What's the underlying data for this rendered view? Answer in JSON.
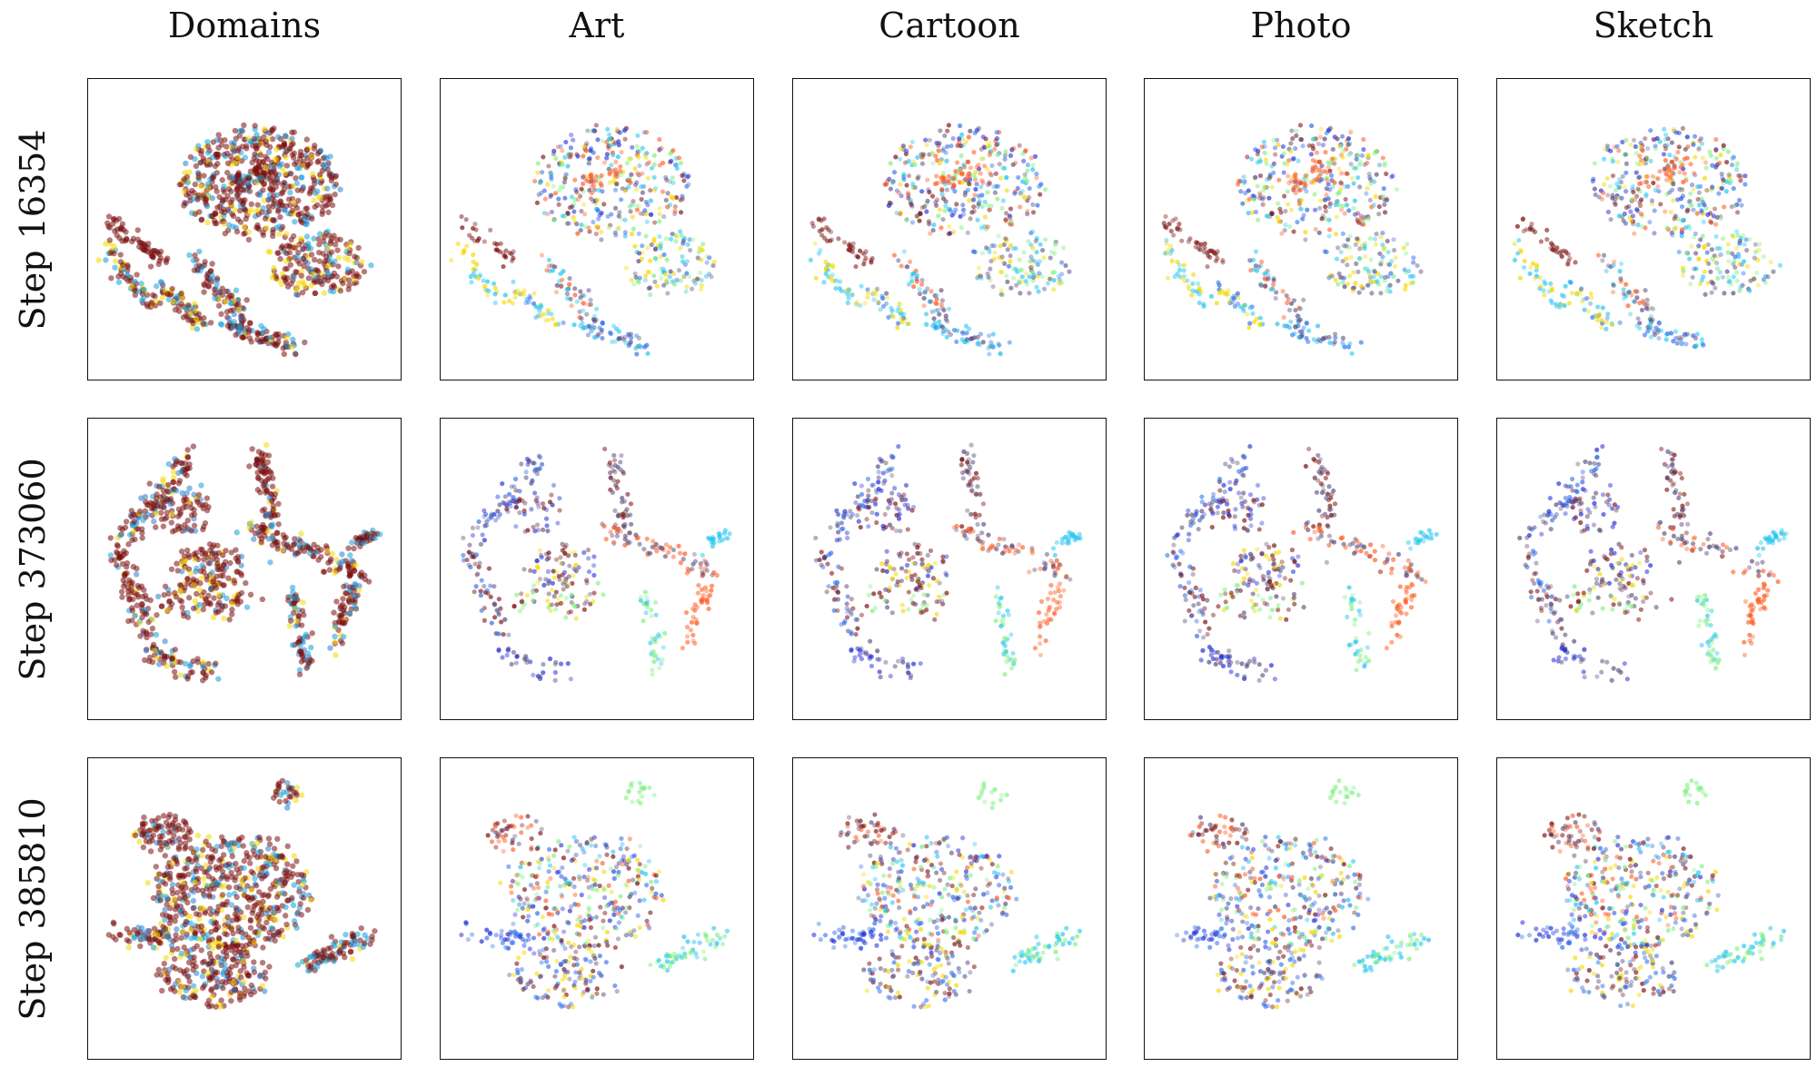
{
  "chart_data": {
    "type": "scatter",
    "columns": [
      "Domains",
      "Art",
      "Cartoon",
      "Photo",
      "Sketch"
    ],
    "rows": [
      "Step 16354",
      "Step 373060",
      "Step 385810"
    ],
    "grid": false,
    "axes_ticks": false,
    "domain_colors": {
      "Art": "#14a0d8",
      "Cartoon": "#f5d800",
      "Photo": "#7a0f0f",
      "Sketch": "#2a7fd0"
    },
    "class_palette": [
      "#1f2bd6",
      "#2f6ee8",
      "#22c4f0",
      "#80f080",
      "#f5d800",
      "#ff5a1e",
      "#7a0f0f",
      "#5a4c7c"
    ],
    "panels": [
      {
        "row": "Step 16354",
        "layout": "early-continent",
        "clusters": {
          "Domains": [
            "mixed-cloud-dominated-by-#7a0f0f",
            "diagonal-streaks-#f5d800-#14a0d8"
          ],
          "Art": [
            "blue-purple-cloud",
            "orange-center-streak",
            "cyan-lower-left-streak"
          ],
          "Cartoon": [
            "blue-purple-cloud",
            "orange-center-streak"
          ],
          "Photo": [
            "dark-red-left-streak",
            "orange-red-mid-streak",
            "cyan-top-right"
          ],
          "Sketch": [
            "blue-yellow-cloud",
            "green-left-streak"
          ]
        }
      },
      {
        "row": "Step 373060",
        "layout": "mid-curves",
        "clusters": {
          "Domains": [
            "dark-red-curves",
            "yellow-cyan-segments"
          ],
          "Art": [
            "blue-arc",
            "orange-right-curve",
            "cyan-right-segment",
            "yellow-center"
          ],
          "Cartoon": [
            "blue-arc",
            "orange-right-curve",
            "dark-red-curve"
          ],
          "Photo": [
            "orange-right-curve",
            "dark-red-bottom-curves",
            "cyan-center-cluster"
          ],
          "Sketch": [
            "blue-upper-left-cluster",
            "yellow-center",
            "green-bottom"
          ]
        }
      },
      {
        "row": "Step 385810",
        "layout": "late-cluster",
        "clusters": {
          "Domains": [
            "dark-red-yellow-cyan-compact-cloud"
          ],
          "Art": [
            "orange-upper-left",
            "cyan-right-arm",
            "yellow-bottom"
          ],
          "Cartoon": [
            "orange-upper-left",
            "cyan-right-arm",
            "mixed-center"
          ],
          "Photo": [
            "orange-upper-left",
            "dark-red-right",
            "mixed-center"
          ],
          "Sketch": [
            "green-top-blob",
            "blue-left-arm",
            "cyan-right-arm",
            "yellow-bottom"
          ]
        }
      }
    ]
  }
}
